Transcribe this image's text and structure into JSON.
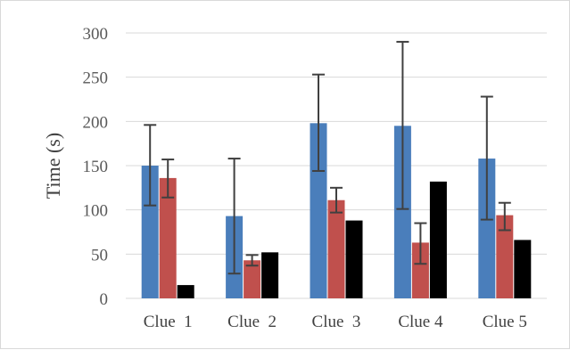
{
  "chart_data": {
    "type": "bar",
    "ylabel": "Time (s)",
    "xlabel": "",
    "ylim": [
      0,
      300
    ],
    "yticks": [
      0,
      50,
      100,
      150,
      200,
      250,
      300
    ],
    "grid": true,
    "legend": "none",
    "categories": [
      "Clue  1",
      "Clue  2",
      "Clue  3",
      "Clue 4",
      "Clue 5"
    ],
    "series": [
      {
        "color": "#4a7ebb",
        "values": [
          150,
          93,
          198,
          195,
          158
        ],
        "error_low": [
          105,
          28,
          144,
          101,
          89
        ],
        "error_high": [
          196,
          158,
          253,
          290,
          228
        ]
      },
      {
        "color": "#c0504d",
        "values": [
          136,
          43,
          111,
          63,
          94
        ],
        "error_low": [
          114,
          37,
          97,
          39,
          77
        ],
        "error_high": [
          157,
          49,
          125,
          85,
          108
        ]
      },
      {
        "color": "#000000",
        "values": [
          15,
          52,
          88,
          132,
          66
        ]
      }
    ],
    "error_bar_color": "#404040",
    "gridline_color": "#d9d9d9"
  }
}
